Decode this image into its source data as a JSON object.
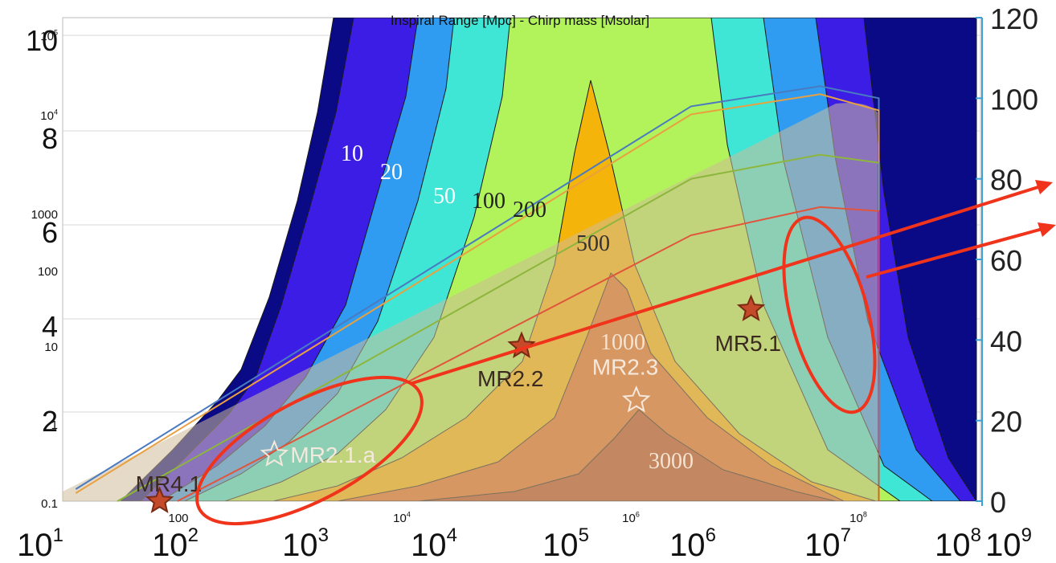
{
  "chart_data": [
    {
      "type": "heatmap",
      "title": "Inspiral Range [Mpc] - Chirp mass [Msolar]",
      "xlabel": "",
      "ylabel": "",
      "x_scale": "log",
      "y_scale": "log",
      "x_ticks": [
        "100",
        "10^4",
        "10^6",
        "10^8"
      ],
      "y_ticks": [
        "10^5",
        "10^4",
        "1000",
        "100",
        "10",
        "1",
        "0.1"
      ],
      "contour_levels": [
        "10",
        "20",
        "50",
        "100",
        "200",
        "500",
        "1000",
        "3000"
      ],
      "contour_colors": [
        "#0a0a87",
        "#3b1de6",
        "#2f9cf2",
        "#3fe6d5",
        "#b2f25a",
        "#f5b40a",
        "#e26a1f",
        "#b5481d"
      ],
      "markers": [
        {
          "label": "MR4.1",
          "x": 70,
          "y": 0.1,
          "style": "filled-star"
        },
        {
          "label": "MR2.1.a",
          "x": 700,
          "y": 0.4,
          "style": "hollow-star"
        },
        {
          "label": "MR2.2",
          "x": 100000,
          "y": 10,
          "style": "filled-star"
        },
        {
          "label": "MR2.3",
          "x": 1000000,
          "y": 2,
          "style": "hollow-star"
        },
        {
          "label": "MR5.1",
          "x": 10000000,
          "y": 30,
          "style": "filled-star"
        }
      ]
    },
    {
      "type": "line",
      "xlabel": "",
      "ylabel": "",
      "x_scale": "log",
      "x_ticks": [
        "10^1",
        "10^2",
        "10^3",
        "10^4",
        "10^5",
        "10^6",
        "10^7",
        "10^8",
        "10^9"
      ],
      "xlim": [
        10,
        1000000000
      ],
      "left_y_ticks": [
        "10",
        "8",
        "6",
        "4",
        "2"
      ],
      "right_y_ticks": [
        "120",
        "100",
        "80",
        "60",
        "40",
        "20",
        "0"
      ],
      "right_ylim": [
        0,
        120
      ],
      "series": [
        {
          "color": "#4a7ac0",
          "x": [
            13,
            3000000,
            40000000,
            130000000,
            130000000
          ],
          "y": [
            3,
            98,
            103,
            100,
            0
          ]
        },
        {
          "color": "#e8a040",
          "x": [
            13,
            3000000,
            40000000,
            130000000,
            130000000
          ],
          "y": [
            2,
            96,
            101,
            97,
            0
          ]
        },
        {
          "color": "#8db63c",
          "x": [
            30,
            3000000,
            40000000,
            130000000,
            130000000
          ],
          "y": [
            0,
            80,
            86,
            84,
            0
          ]
        },
        {
          "color": "#e0553c",
          "x": [
            100,
            3000000,
            40000000,
            130000000,
            130000000
          ],
          "y": [
            0,
            66,
            73,
            72,
            0
          ]
        }
      ]
    }
  ],
  "annotations": {
    "highlight_color": "#f0341c",
    "highlights": [
      "low-mass-ellipse",
      "high-mass-ellipse"
    ],
    "arrows": 2
  }
}
